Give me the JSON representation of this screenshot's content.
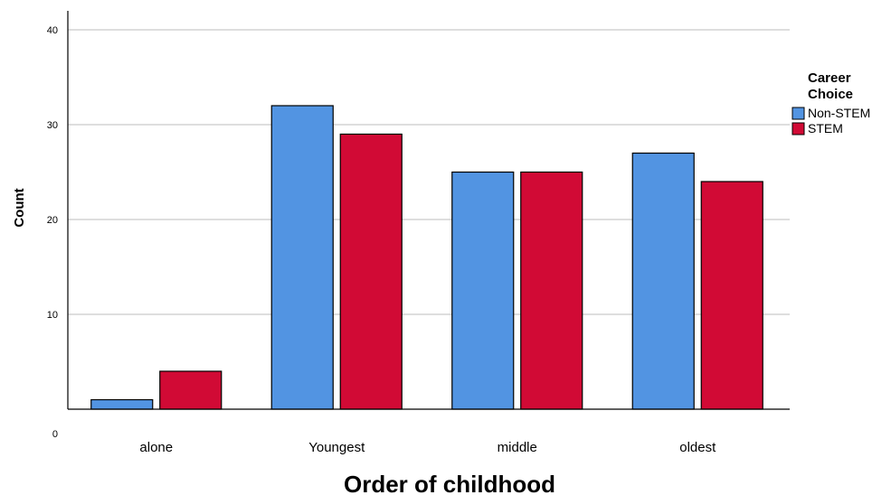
{
  "chart_data": {
    "type": "bar",
    "title": "",
    "xlabel": "Order of childhood",
    "ylabel": "Count",
    "categories": [
      "alone",
      "Youngest",
      "middle",
      "oldest"
    ],
    "series": [
      {
        "name": "Non-STEM",
        "color": "#5294E2",
        "values": [
          1,
          32,
          25,
          27
        ]
      },
      {
        "name": "STEM",
        "color": "#D10A35",
        "values": [
          4,
          29,
          25,
          24
        ]
      }
    ],
    "ylim": [
      0,
      40
    ],
    "yticks": [
      0,
      10,
      20,
      30,
      40
    ],
    "grid": true,
    "legend": {
      "title_lines": [
        "Career",
        "Choice"
      ],
      "placement": "right"
    }
  }
}
